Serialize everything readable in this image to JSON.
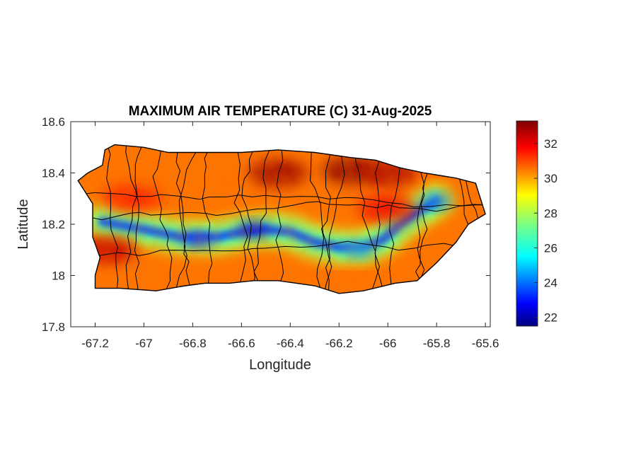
{
  "chart_data": {
    "type": "heatmap",
    "title": "MAXIMUM AIR TEMPERATURE (C) 31-Aug-2025",
    "xlabel": "Longitude",
    "ylabel": "Latitude",
    "xlim": [
      -67.3,
      -65.58
    ],
    "ylim": [
      17.8,
      18.6
    ],
    "x_ticks": [
      -67.2,
      -67,
      -66.8,
      -66.6,
      -66.4,
      -66.2,
      -66,
      -65.8,
      -65.6
    ],
    "x_tick_labels": [
      "-67.2",
      "-67",
      "-66.8",
      "-66.6",
      "-66.4",
      "-66.2",
      "-66",
      "-65.8",
      "-65.6"
    ],
    "y_ticks": [
      17.8,
      18,
      18.2,
      18.4,
      18.6
    ],
    "y_tick_labels": [
      "17.8",
      "18",
      "18.2",
      "18.4",
      "18.6"
    ],
    "colorbar": {
      "range": [
        21.5,
        33.3
      ],
      "ticks": [
        22,
        24,
        26,
        28,
        30,
        32
      ],
      "tick_labels": [
        "22",
        "24",
        "26",
        "28",
        "30",
        "32"
      ],
      "colormap": "jet"
    },
    "grid": false,
    "island_outline": [
      [
        -67.27,
        18.37
      ],
      [
        -67.23,
        18.4
      ],
      [
        -67.17,
        18.43
      ],
      [
        -67.16,
        18.49
      ],
      [
        -67.12,
        18.51
      ],
      [
        -67.0,
        18.5
      ],
      [
        -66.9,
        18.48
      ],
      [
        -66.75,
        18.48
      ],
      [
        -66.6,
        18.48
      ],
      [
        -66.45,
        18.49
      ],
      [
        -66.3,
        18.48
      ],
      [
        -66.15,
        18.46
      ],
      [
        -66.05,
        18.45
      ],
      [
        -65.95,
        18.42
      ],
      [
        -65.85,
        18.4
      ],
      [
        -65.72,
        18.38
      ],
      [
        -65.64,
        18.36
      ],
      [
        -65.62,
        18.3
      ],
      [
        -65.6,
        18.24
      ],
      [
        -65.67,
        18.2
      ],
      [
        -65.72,
        18.13
      ],
      [
        -65.8,
        18.05
      ],
      [
        -65.88,
        17.98
      ],
      [
        -65.97,
        17.97
      ],
      [
        -66.1,
        17.94
      ],
      [
        -66.2,
        17.93
      ],
      [
        -66.3,
        17.96
      ],
      [
        -66.45,
        17.98
      ],
      [
        -66.55,
        17.98
      ],
      [
        -66.65,
        17.97
      ],
      [
        -66.75,
        17.97
      ],
      [
        -66.83,
        17.96
      ],
      [
        -66.95,
        17.94
      ],
      [
        -67.1,
        17.95
      ],
      [
        -67.2,
        17.95
      ],
      [
        -67.2,
        18.0
      ],
      [
        -67.18,
        18.07
      ],
      [
        -67.21,
        18.15
      ],
      [
        -67.21,
        18.2
      ],
      [
        -67.21,
        18.28
      ],
      [
        -67.27,
        18.37
      ]
    ],
    "temperature_features": [
      {
        "kind": "base",
        "value": 30.5
      },
      {
        "kind": "cool-ridge",
        "value": 24.0,
        "path": [
          [
            -67.17,
            18.21
          ],
          [
            -67.0,
            18.18
          ],
          [
            -66.85,
            18.15
          ],
          [
            -66.7,
            18.15
          ],
          [
            -66.6,
            18.17
          ],
          [
            -66.5,
            18.18
          ],
          [
            -66.4,
            18.17
          ],
          [
            -66.3,
            18.13
          ],
          [
            -66.2,
            18.11
          ],
          [
            -66.1,
            18.11
          ],
          [
            -66.02,
            18.14
          ],
          [
            -65.95,
            18.2
          ],
          [
            -65.86,
            18.26
          ],
          [
            -65.8,
            18.29
          ]
        ]
      },
      {
        "kind": "cool-spot",
        "value": 22.5,
        "center": [
          -66.55,
          18.18
        ]
      },
      {
        "kind": "cool-spot",
        "value": 24.5,
        "center": [
          -65.8,
          18.29
        ]
      },
      {
        "kind": "cool-spot",
        "value": 23.5,
        "center": [
          -66.78,
          18.14
        ]
      },
      {
        "kind": "cool-spot",
        "value": 25.0,
        "center": [
          -66.12,
          18.1
        ]
      },
      {
        "kind": "hot-spot",
        "value": 33.0,
        "center": [
          -66.45,
          18.4
        ]
      },
      {
        "kind": "hot-spot",
        "value": 33.2,
        "center": [
          -66.15,
          18.41
        ]
      },
      {
        "kind": "hot-spot",
        "value": 32.8,
        "center": [
          -66.0,
          18.4
        ]
      },
      {
        "kind": "hot-spot",
        "value": 32.5,
        "center": [
          -67.15,
          18.1
        ]
      },
      {
        "kind": "hot-spot",
        "value": 32.0,
        "center": [
          -66.0,
          18.26
        ]
      },
      {
        "kind": "hot-spot",
        "value": 31.5,
        "center": [
          -67.05,
          18.3
        ]
      }
    ]
  }
}
